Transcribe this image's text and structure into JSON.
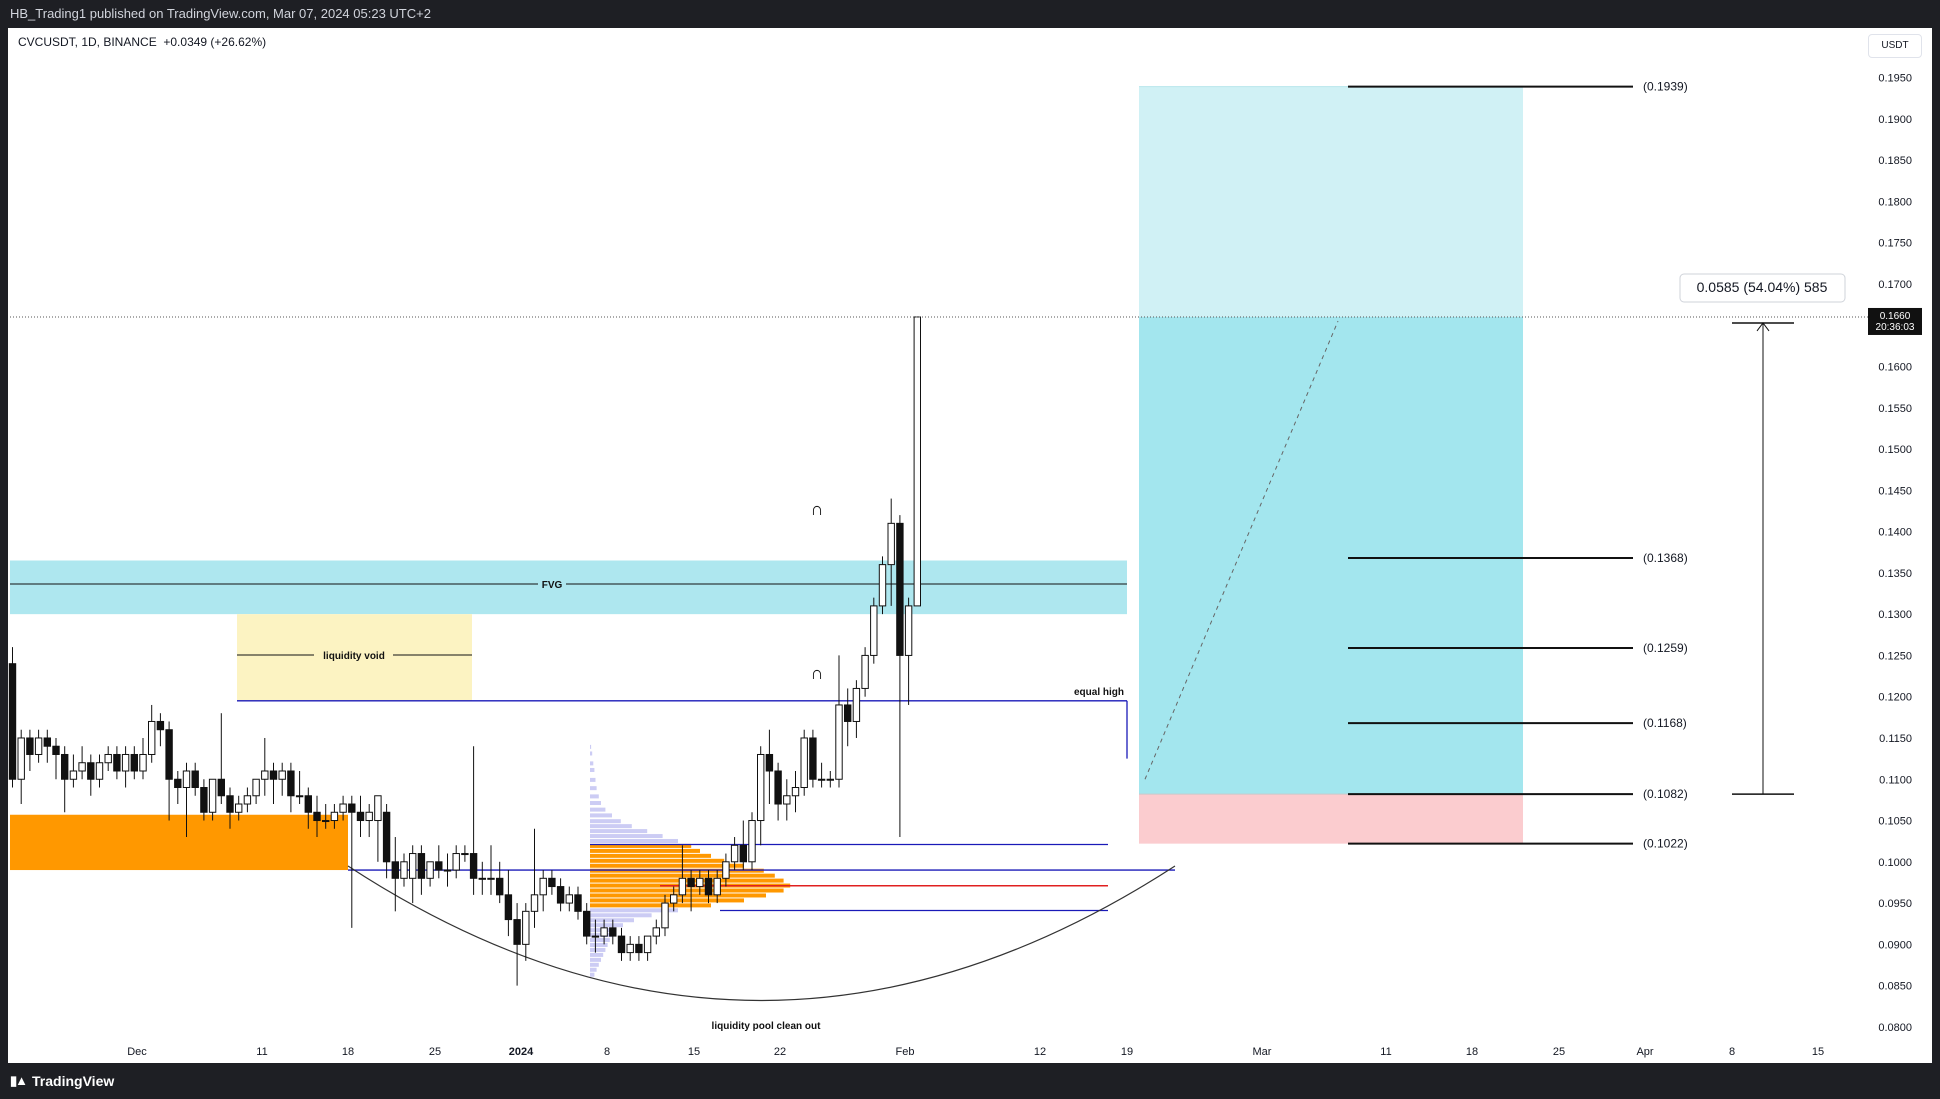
{
  "header": {
    "published_by": "HB_Trading1 published on TradingView.com, Mar 07, 2024 05:23 UTC+2"
  },
  "legend": {
    "symbol": "CVCUSDT, 1D, BINANCE",
    "change": "+0.0349 (+26.62%)"
  },
  "footer": {
    "brand": "TradingView"
  },
  "price_axis": {
    "unit_button": "USDT"
  },
  "colors": {
    "fvg": "#aee7ef",
    "liquidity_void": "#fcf3c2",
    "orange_zone": "#ff9800",
    "target_zone_dark": "#a3e6ee",
    "target_zone_light": "#d0f1f5",
    "stop_zone": "#fbcccf",
    "equal_high_line": "#1a1ab8",
    "poc_line": "#e02020",
    "bull_candle": "#ffffff",
    "bear_candle": "#111111",
    "volume_profile": "#c7c7f3"
  },
  "annotations": {
    "fvg": "FVG",
    "liquidity_void": "liquidity void",
    "equal_high": "equal high",
    "liquidity_pool": "liquidity pool clean out",
    "measure": "0.0585 (54.04%) 585"
  },
  "current_price": {
    "value": "0.1660",
    "countdown": "20:36:03"
  },
  "chart_data": {
    "type": "candlestick",
    "symbol": "CVCUSDT",
    "timeframe": "1D",
    "exchange": "BINANCE",
    "ylim": [
      0.0775,
      0.1975
    ],
    "y_ticks": [
      "0.0800",
      "0.0850",
      "0.0900",
      "0.0950",
      "0.1000",
      "0.1050",
      "0.1100",
      "0.1150",
      "0.1200",
      "0.1250",
      "0.1300",
      "0.1350",
      "0.1400",
      "0.1450",
      "0.1500",
      "0.1550",
      "0.1600",
      "0.1650",
      "0.1700",
      "0.1750",
      "0.1800",
      "0.1850",
      "0.1900",
      "0.1950"
    ],
    "x_ticks": [
      "Dec",
      "11",
      "18",
      "25",
      "2024",
      "8",
      "15",
      "22",
      "Feb",
      "12",
      "19",
      "Mar",
      "11",
      "18",
      "25",
      "Apr",
      "8",
      "15"
    ],
    "candles": [
      {
        "o": 0.124,
        "h": 0.126,
        "c": 0.11,
        "l": 0.109
      },
      {
        "o": 0.11,
        "h": 0.116,
        "c": 0.115,
        "l": 0.107
      },
      {
        "o": 0.115,
        "h": 0.116,
        "c": 0.113,
        "l": 0.111
      },
      {
        "o": 0.113,
        "h": 0.116,
        "c": 0.115,
        "l": 0.112
      },
      {
        "o": 0.115,
        "h": 0.116,
        "c": 0.114,
        "l": 0.112
      },
      {
        "o": 0.114,
        "h": 0.115,
        "c": 0.113,
        "l": 0.11
      },
      {
        "o": 0.113,
        "h": 0.114,
        "c": 0.11,
        "l": 0.106
      },
      {
        "o": 0.11,
        "h": 0.113,
        "c": 0.111,
        "l": 0.109
      },
      {
        "o": 0.111,
        "h": 0.114,
        "c": 0.112,
        "l": 0.11
      },
      {
        "o": 0.112,
        "h": 0.113,
        "c": 0.11,
        "l": 0.108
      },
      {
        "o": 0.11,
        "h": 0.113,
        "c": 0.112,
        "l": 0.109
      },
      {
        "o": 0.112,
        "h": 0.114,
        "c": 0.113,
        "l": 0.111
      },
      {
        "o": 0.113,
        "h": 0.114,
        "c": 0.111,
        "l": 0.11
      },
      {
        "o": 0.111,
        "h": 0.114,
        "c": 0.113,
        "l": 0.109
      },
      {
        "o": 0.113,
        "h": 0.114,
        "c": 0.111,
        "l": 0.11
      },
      {
        "o": 0.111,
        "h": 0.115,
        "c": 0.113,
        "l": 0.11
      },
      {
        "o": 0.113,
        "h": 0.119,
        "c": 0.117,
        "l": 0.112
      },
      {
        "o": 0.117,
        "h": 0.118,
        "c": 0.116,
        "l": 0.114
      },
      {
        "o": 0.116,
        "h": 0.117,
        "c": 0.11,
        "l": 0.105
      },
      {
        "o": 0.11,
        "h": 0.111,
        "c": 0.109,
        "l": 0.107
      },
      {
        "o": 0.109,
        "h": 0.112,
        "c": 0.111,
        "l": 0.103
      },
      {
        "o": 0.111,
        "h": 0.112,
        "c": 0.109,
        "l": 0.108
      },
      {
        "o": 0.109,
        "h": 0.11,
        "c": 0.106,
        "l": 0.105
      },
      {
        "o": 0.106,
        "h": 0.11,
        "c": 0.11,
        "l": 0.105
      },
      {
        "o": 0.11,
        "h": 0.118,
        "c": 0.108,
        "l": 0.107
      },
      {
        "o": 0.108,
        "h": 0.109,
        "c": 0.106,
        "l": 0.104
      },
      {
        "o": 0.106,
        "h": 0.108,
        "c": 0.107,
        "l": 0.105
      },
      {
        "o": 0.107,
        "h": 0.109,
        "c": 0.108,
        "l": 0.106
      },
      {
        "o": 0.108,
        "h": 0.11,
        "c": 0.11,
        "l": 0.107
      },
      {
        "o": 0.11,
        "h": 0.115,
        "c": 0.111,
        "l": 0.108
      },
      {
        "o": 0.111,
        "h": 0.112,
        "c": 0.11,
        "l": 0.107
      },
      {
        "o": 0.11,
        "h": 0.112,
        "c": 0.111,
        "l": 0.108
      },
      {
        "o": 0.111,
        "h": 0.112,
        "c": 0.108,
        "l": 0.106
      },
      {
        "o": 0.108,
        "h": 0.111,
        "c": 0.108,
        "l": 0.107
      },
      {
        "o": 0.108,
        "h": 0.109,
        "c": 0.106,
        "l": 0.104
      },
      {
        "o": 0.106,
        "h": 0.108,
        "c": 0.105,
        "l": 0.103
      },
      {
        "o": 0.105,
        "h": 0.107,
        "c": 0.105,
        "l": 0.104
      },
      {
        "o": 0.105,
        "h": 0.107,
        "c": 0.106,
        "l": 0.104
      },
      {
        "o": 0.106,
        "h": 0.108,
        "c": 0.107,
        "l": 0.105
      },
      {
        "o": 0.107,
        "h": 0.108,
        "c": 0.106,
        "l": 0.092
      },
      {
        "o": 0.106,
        "h": 0.108,
        "c": 0.105,
        "l": 0.103
      },
      {
        "o": 0.105,
        "h": 0.107,
        "c": 0.106,
        "l": 0.103
      },
      {
        "o": 0.105,
        "h": 0.108,
        "c": 0.108,
        "l": 0.1
      },
      {
        "o": 0.106,
        "h": 0.107,
        "c": 0.1,
        "l": 0.098
      },
      {
        "o": 0.1,
        "h": 0.103,
        "c": 0.098,
        "l": 0.094
      },
      {
        "o": 0.098,
        "h": 0.101,
        "c": 0.1,
        "l": 0.097
      },
      {
        "o": 0.098,
        "h": 0.102,
        "c": 0.101,
        "l": 0.095
      },
      {
        "o": 0.101,
        "h": 0.102,
        "c": 0.098,
        "l": 0.096
      },
      {
        "o": 0.098,
        "h": 0.1,
        "c": 0.1,
        "l": 0.097
      },
      {
        "o": 0.1,
        "h": 0.102,
        "c": 0.099,
        "l": 0.098
      },
      {
        "o": 0.099,
        "h": 0.101,
        "c": 0.099,
        "l": 0.097
      },
      {
        "o": 0.099,
        "h": 0.102,
        "c": 0.101,
        "l": 0.098
      },
      {
        "o": 0.101,
        "h": 0.102,
        "c": 0.101,
        "l": 0.1
      },
      {
        "o": 0.101,
        "h": 0.114,
        "c": 0.098,
        "l": 0.096
      },
      {
        "o": 0.098,
        "h": 0.1,
        "c": 0.098,
        "l": 0.096
      },
      {
        "o": 0.098,
        "h": 0.102,
        "c": 0.098,
        "l": 0.096
      },
      {
        "o": 0.098,
        "h": 0.1,
        "c": 0.096,
        "l": 0.095
      },
      {
        "o": 0.096,
        "h": 0.099,
        "c": 0.093,
        "l": 0.091
      },
      {
        "o": 0.093,
        "h": 0.095,
        "c": 0.09,
        "l": 0.085
      },
      {
        "o": 0.09,
        "h": 0.095,
        "c": 0.094,
        "l": 0.088
      },
      {
        "o": 0.094,
        "h": 0.104,
        "c": 0.096,
        "l": 0.092
      },
      {
        "o": 0.096,
        "h": 0.099,
        "c": 0.098,
        "l": 0.094
      },
      {
        "o": 0.098,
        "h": 0.099,
        "c": 0.097,
        "l": 0.096
      },
      {
        "o": 0.097,
        "h": 0.098,
        "c": 0.095,
        "l": 0.094
      },
      {
        "o": 0.095,
        "h": 0.097,
        "c": 0.096,
        "l": 0.094
      },
      {
        "o": 0.096,
        "h": 0.097,
        "c": 0.094,
        "l": 0.093
      },
      {
        "o": 0.094,
        "h": 0.095,
        "c": 0.091,
        "l": 0.09
      },
      {
        "o": 0.091,
        "h": 0.093,
        "c": 0.091,
        "l": 0.089
      },
      {
        "o": 0.091,
        "h": 0.093,
        "c": 0.092,
        "l": 0.09
      },
      {
        "o": 0.092,
        "h": 0.093,
        "c": 0.091,
        "l": 0.09
      },
      {
        "o": 0.091,
        "h": 0.092,
        "c": 0.089,
        "l": 0.088
      },
      {
        "o": 0.089,
        "h": 0.091,
        "c": 0.09,
        "l": 0.088
      },
      {
        "o": 0.09,
        "h": 0.091,
        "c": 0.089,
        "l": 0.088
      },
      {
        "o": 0.089,
        "h": 0.091,
        "c": 0.091,
        "l": 0.088
      },
      {
        "o": 0.091,
        "h": 0.093,
        "c": 0.092,
        "l": 0.09
      },
      {
        "o": 0.092,
        "h": 0.096,
        "c": 0.095,
        "l": 0.091
      },
      {
        "o": 0.095,
        "h": 0.097,
        "c": 0.096,
        "l": 0.094
      },
      {
        "o": 0.096,
        "h": 0.102,
        "c": 0.098,
        "l": 0.095
      },
      {
        "o": 0.098,
        "h": 0.099,
        "c": 0.097,
        "l": 0.094
      },
      {
        "o": 0.097,
        "h": 0.099,
        "c": 0.098,
        "l": 0.096
      },
      {
        "o": 0.098,
        "h": 0.099,
        "c": 0.096,
        "l": 0.095
      },
      {
        "o": 0.096,
        "h": 0.099,
        "c": 0.098,
        "l": 0.095
      },
      {
        "o": 0.098,
        "h": 0.101,
        "c": 0.1,
        "l": 0.097
      },
      {
        "o": 0.1,
        "h": 0.103,
        "c": 0.102,
        "l": 0.099
      },
      {
        "o": 0.102,
        "h": 0.105,
        "c": 0.1,
        "l": 0.099
      },
      {
        "o": 0.1,
        "h": 0.106,
        "c": 0.105,
        "l": 0.099
      },
      {
        "o": 0.105,
        "h": 0.114,
        "c": 0.113,
        "l": 0.102
      },
      {
        "o": 0.113,
        "h": 0.116,
        "c": 0.111,
        "l": 0.107
      },
      {
        "o": 0.111,
        "h": 0.112,
        "c": 0.107,
        "l": 0.105
      },
      {
        "o": 0.107,
        "h": 0.11,
        "c": 0.108,
        "l": 0.105
      },
      {
        "o": 0.108,
        "h": 0.111,
        "c": 0.109,
        "l": 0.106
      },
      {
        "o": 0.109,
        "h": 0.116,
        "c": 0.115,
        "l": 0.108
      },
      {
        "o": 0.115,
        "h": 0.116,
        "c": 0.11,
        "l": 0.109
      },
      {
        "o": 0.11,
        "h": 0.112,
        "c": 0.11,
        "l": 0.109
      },
      {
        "o": 0.11,
        "h": 0.111,
        "c": 0.11,
        "l": 0.109
      },
      {
        "o": 0.11,
        "h": 0.125,
        "c": 0.119,
        "l": 0.109
      },
      {
        "o": 0.119,
        "h": 0.121,
        "c": 0.117,
        "l": 0.114
      },
      {
        "o": 0.117,
        "h": 0.122,
        "c": 0.121,
        "l": 0.115
      },
      {
        "o": 0.121,
        "h": 0.126,
        "c": 0.125,
        "l": 0.12
      },
      {
        "o": 0.125,
        "h": 0.132,
        "c": 0.131,
        "l": 0.124
      },
      {
        "o": 0.131,
        "h": 0.137,
        "c": 0.136,
        "l": 0.13
      },
      {
        "o": 0.136,
        "h": 0.144,
        "c": 0.141,
        "l": 0.131
      },
      {
        "o": 0.141,
        "h": 0.142,
        "c": 0.125,
        "l": 0.103
      },
      {
        "o": 0.125,
        "h": 0.132,
        "c": 0.131,
        "l": 0.119
      },
      {
        "o": 0.131,
        "h": 0.166,
        "c": 0.166,
        "l": 0.131
      }
    ],
    "fvg": [
      0.13,
      0.1365
    ],
    "liquidity_void": [
      0.1195,
      0.13
    ],
    "orange_zone": [
      0.099,
      0.1057
    ],
    "equal_high": 0.1195,
    "range_lines": [
      0.1021,
      0.099,
      0.0941
    ],
    "poc": 0.0971,
    "position": {
      "entry": 0.1082,
      "stop": 0.1022,
      "target": 0.1939,
      "levels": [
        "(0.1939)",
        "(0.1368)",
        "(0.1259)",
        "(0.1168)",
        "(0.1082)",
        "(0.1022)"
      ],
      "level_values": [
        0.1939,
        0.1368,
        0.1259,
        0.1168,
        0.1082,
        0.1022
      ]
    },
    "current_price": 0.166
  }
}
